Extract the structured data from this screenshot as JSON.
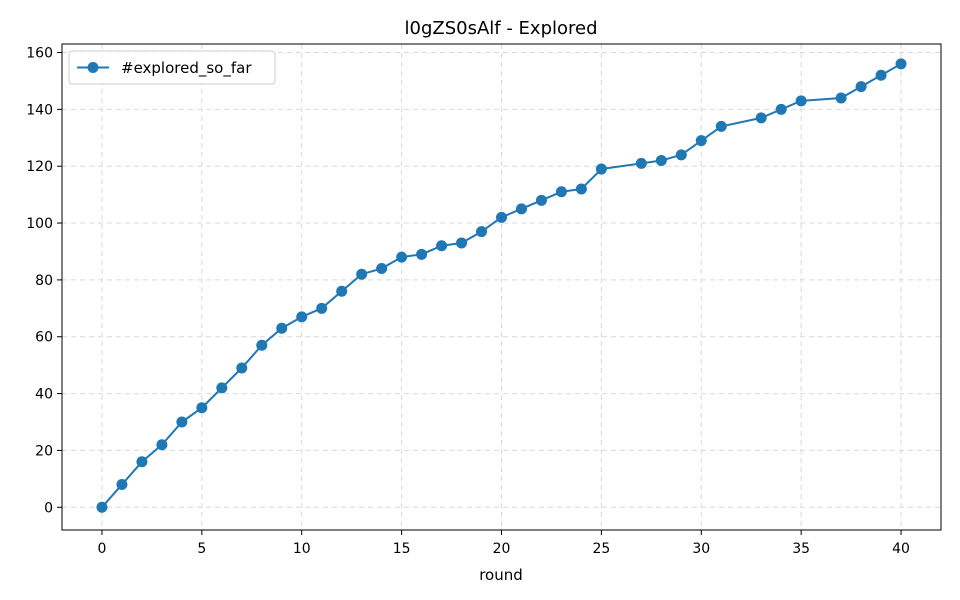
{
  "chart_data": {
    "type": "line",
    "title": "l0gZS0sAlf - Explored",
    "xlabel": "round",
    "ylabel": "",
    "xlim": [
      -2,
      42
    ],
    "ylim": [
      -8,
      163
    ],
    "xticks": [
      0,
      5,
      10,
      15,
      20,
      25,
      30,
      35,
      40
    ],
    "yticks": [
      0,
      20,
      40,
      60,
      80,
      100,
      120,
      140,
      160
    ],
    "grid": true,
    "legend_position": "top-left",
    "series": [
      {
        "name": "#explored_so_far",
        "color": "#1f77b4",
        "marker": "circle",
        "x": [
          0,
          1,
          2,
          3,
          4,
          5,
          6,
          7,
          8,
          9,
          10,
          11,
          12,
          13,
          14,
          15,
          16,
          17,
          18,
          19,
          20,
          21,
          22,
          23,
          24,
          25,
          27,
          28,
          29,
          30,
          31,
          33,
          34,
          35,
          37,
          38,
          39,
          40
        ],
        "y": [
          0,
          8,
          16,
          22,
          30,
          35,
          42,
          49,
          57,
          63,
          67,
          70,
          76,
          82,
          84,
          88,
          89,
          92,
          93,
          97,
          102,
          105,
          108,
          111,
          112,
          119,
          121,
          122,
          124,
          129,
          134,
          137,
          140,
          143,
          144,
          148,
          152,
          156
        ]
      }
    ]
  }
}
